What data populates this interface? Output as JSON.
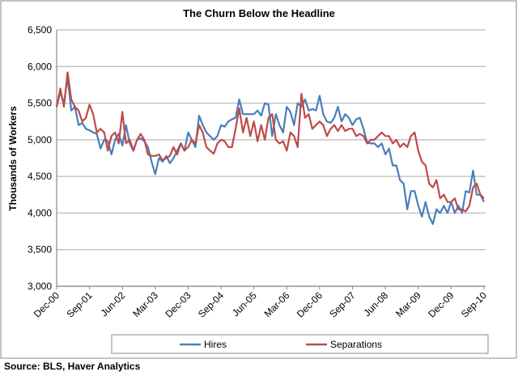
{
  "chart_data": {
    "type": "line",
    "title": "The Churn Below the Headline",
    "xlabel": "",
    "ylabel": "Thousands of Workers",
    "ylim": [
      3000,
      6500
    ],
    "yticks": [
      3000,
      3500,
      4000,
      4500,
      5000,
      5500,
      6000,
      6500
    ],
    "ytick_labels": [
      "3,000",
      "3,500",
      "4,000",
      "4,500",
      "5,000",
      "5,500",
      "6,000",
      "6,500"
    ],
    "x_start": "Dec-00",
    "x_end": "Sep-10",
    "x_frequency": "monthly",
    "xtick_every_months": 9,
    "xtick_labels": [
      "Dec-00",
      "Sep-01",
      "Jun-02",
      "Mar-03",
      "Dec-03",
      "Sep-04",
      "Jun-05",
      "Mar-06",
      "Dec-06",
      "Sep-07",
      "Jun-08",
      "Mar-09",
      "Dec-09",
      "Sep-10"
    ],
    "grid": true,
    "legend_position": "bottom",
    "series": [
      {
        "name": "Hires",
        "color": "#4a7ebb",
        "values": [
          5450,
          5650,
          5500,
          5850,
          5400,
          5450,
          5200,
          5230,
          5150,
          5130,
          5100,
          5080,
          4880,
          5000,
          4980,
          4800,
          5000,
          5080,
          4920,
          5200,
          4950,
          4850,
          5000,
          5020,
          4980,
          4900,
          4700,
          4530,
          4750,
          4700,
          4780,
          4680,
          4750,
          4850,
          4950,
          4850,
          5100,
          5000,
          4900,
          5330,
          5200,
          5100,
          5050,
          5000,
          5050,
          5200,
          5180,
          5250,
          5280,
          5300,
          5550,
          5350,
          5350,
          5350,
          5350,
          5400,
          5330,
          5500,
          5480,
          5050,
          5350,
          5200,
          5100,
          5450,
          5380,
          5200,
          5500,
          5450,
          5550,
          5400,
          5420,
          5400,
          5600,
          5350,
          5250,
          5230,
          5300,
          5450,
          5250,
          5350,
          5300,
          5200,
          5280,
          5300,
          5150,
          4960,
          4950,
          4950,
          4900,
          4950,
          4800,
          4880,
          4650,
          4650,
          4450,
          4400,
          4050,
          4300,
          4300,
          4100,
          3950,
          4150,
          3950,
          3850,
          4050,
          4000,
          4100,
          4000,
          4150,
          4000,
          4100,
          4000,
          4300,
          4280,
          4580,
          4250,
          4250,
          4150
        ]
      },
      {
        "name": "Separations",
        "color": "#be4b48",
        "values": [
          5450,
          5700,
          5450,
          5920,
          5550,
          5450,
          5400,
          5250,
          5300,
          5480,
          5350,
          5100,
          5150,
          5100,
          4850,
          5050,
          5100,
          4950,
          5380,
          4950,
          5000,
          4850,
          5000,
          5080,
          5000,
          4800,
          4780,
          4780,
          4800,
          4720,
          4750,
          4780,
          4900,
          4800,
          4950,
          4850,
          4900,
          5000,
          4950,
          5200,
          5100,
          4900,
          4850,
          4810,
          4950,
          5000,
          4980,
          4900,
          4900,
          5150,
          5430,
          5100,
          5300,
          5050,
          5250,
          4980,
          5200,
          5000,
          5300,
          5350,
          5000,
          4950,
          4980,
          4850,
          5100,
          5050,
          4900,
          5630,
          5300,
          5350,
          5150,
          5200,
          5250,
          5200,
          5050,
          5150,
          5200,
          5120,
          5200,
          5120,
          5150,
          5150,
          5050,
          5080,
          5050,
          4950,
          5000,
          5000,
          5050,
          5100,
          5050,
          5050,
          4950,
          5000,
          4900,
          4950,
          4900,
          5050,
          5100,
          4850,
          4700,
          4650,
          4400,
          4350,
          4450,
          4200,
          4250,
          4150,
          4150,
          4200,
          4050,
          4050,
          4020,
          4100,
          4350,
          4400,
          4250,
          4200
        ]
      }
    ]
  },
  "source": "Source:  BLS, Haver Analytics"
}
